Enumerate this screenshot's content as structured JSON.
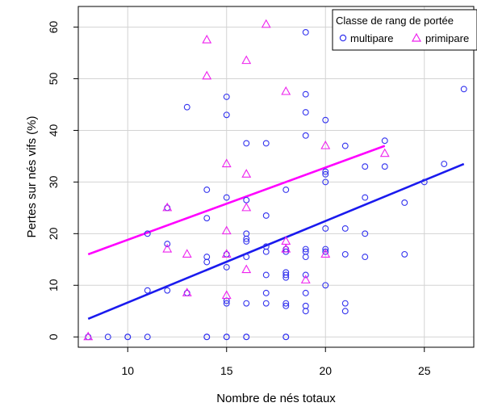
{
  "chart_data": {
    "type": "scatter",
    "title": "",
    "xlabel": "Nombre de nés totaux",
    "ylabel": "Pertes sur nés vifs (%)",
    "xlim": [
      7.5,
      27.5
    ],
    "ylim": [
      -2,
      64
    ],
    "xticks": [
      10,
      15,
      20,
      25
    ],
    "yticks": [
      0,
      10,
      20,
      30,
      40,
      50,
      60
    ],
    "grid": true,
    "legend": {
      "title": "Classe de rang de portée",
      "placement": "top-right",
      "entries": [
        "multipare",
        "primipare"
      ]
    },
    "series": [
      {
        "name": "multipare",
        "marker": "circle",
        "color": "#3333ee",
        "points": [
          [
            8,
            0
          ],
          [
            9,
            0
          ],
          [
            10,
            0
          ],
          [
            10,
            0
          ],
          [
            11,
            0
          ],
          [
            11,
            9
          ],
          [
            11,
            20
          ],
          [
            12,
            9
          ],
          [
            12,
            18
          ],
          [
            12,
            25
          ],
          [
            13,
            8.5
          ],
          [
            13,
            44.5
          ],
          [
            14,
            0
          ],
          [
            14,
            0
          ],
          [
            14,
            14.5
          ],
          [
            14,
            15.5
          ],
          [
            14,
            23
          ],
          [
            14,
            28.5
          ],
          [
            15,
            0
          ],
          [
            15,
            0
          ],
          [
            15,
            6.5
          ],
          [
            15,
            7
          ],
          [
            15,
            13.5
          ],
          [
            15,
            16
          ],
          [
            15,
            27
          ],
          [
            15,
            43
          ],
          [
            15,
            46.5
          ],
          [
            16,
            0
          ],
          [
            16,
            0
          ],
          [
            16,
            6.5
          ],
          [
            16,
            15.5
          ],
          [
            16,
            18.5
          ],
          [
            16,
            19
          ],
          [
            16,
            20
          ],
          [
            16,
            26.5
          ],
          [
            16,
            37.5
          ],
          [
            17,
            6.5
          ],
          [
            17,
            8.5
          ],
          [
            17,
            12
          ],
          [
            17,
            16.5
          ],
          [
            17,
            17.5
          ],
          [
            17,
            23.5
          ],
          [
            17,
            37.5
          ],
          [
            18,
            0
          ],
          [
            18,
            0
          ],
          [
            18,
            6
          ],
          [
            18,
            6.5
          ],
          [
            18,
            11.5
          ],
          [
            18,
            12
          ],
          [
            18,
            12.5
          ],
          [
            18,
            16.5
          ],
          [
            18,
            17
          ],
          [
            18,
            28.5
          ],
          [
            19,
            5
          ],
          [
            19,
            6
          ],
          [
            19,
            8.5
          ],
          [
            19,
            12
          ],
          [
            19,
            15.5
          ],
          [
            19,
            16.5
          ],
          [
            19,
            17
          ],
          [
            19,
            39
          ],
          [
            19,
            43.5
          ],
          [
            19,
            47
          ],
          [
            19,
            59
          ],
          [
            20,
            10
          ],
          [
            20,
            16.5
          ],
          [
            20,
            17
          ],
          [
            20,
            21
          ],
          [
            20,
            30
          ],
          [
            20,
            31.5
          ],
          [
            20,
            32
          ],
          [
            20,
            42
          ],
          [
            21,
            5
          ],
          [
            21,
            6.5
          ],
          [
            21,
            16
          ],
          [
            21,
            21
          ],
          [
            21,
            37
          ],
          [
            22,
            15.5
          ],
          [
            22,
            20
          ],
          [
            22,
            27
          ],
          [
            22,
            33
          ],
          [
            23,
            33
          ],
          [
            23,
            38
          ],
          [
            24,
            16
          ],
          [
            24,
            26
          ],
          [
            25,
            30
          ],
          [
            26,
            33.5
          ],
          [
            27,
            48
          ]
        ],
        "fit": {
          "x": [
            8,
            27
          ],
          "y": [
            3.5,
            33.5
          ],
          "color": "#1a1aee"
        }
      },
      {
        "name": "primipare",
        "marker": "triangle",
        "color": "#ee22ee",
        "points": [
          [
            8,
            0
          ],
          [
            12,
            17
          ],
          [
            12,
            25
          ],
          [
            13,
            8.5
          ],
          [
            13,
            16
          ],
          [
            14,
            50.5
          ],
          [
            14,
            57.5
          ],
          [
            15,
            8
          ],
          [
            15,
            16
          ],
          [
            15,
            20.5
          ],
          [
            15,
            33.5
          ],
          [
            16,
            13
          ],
          [
            16,
            25
          ],
          [
            16,
            31.5
          ],
          [
            16,
            53.5
          ],
          [
            17,
            60.5
          ],
          [
            18,
            17
          ],
          [
            18,
            18.5
          ],
          [
            18,
            47.5
          ],
          [
            19,
            11
          ],
          [
            20,
            16
          ],
          [
            20,
            37
          ],
          [
            23,
            35.5
          ]
        ],
        "fit": {
          "x": [
            8,
            23
          ],
          "y": [
            16,
            37
          ],
          "color": "#ff00ff"
        }
      }
    ]
  }
}
